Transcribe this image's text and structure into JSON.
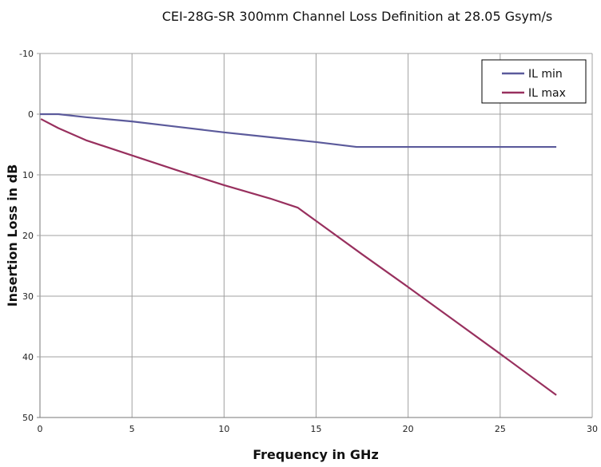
{
  "chart_data": {
    "type": "line",
    "title": "CEI-28G-SR 300mm Channel Loss Definition at 28.05 Gsym/s",
    "xlabel": "Frequency in GHz",
    "ylabel": "Insertion Loss in dB",
    "xlim": [
      0,
      30
    ],
    "ylim": [
      -10,
      50
    ],
    "y_inverted": true,
    "xticks": [
      "0",
      "5",
      "10",
      "15",
      "20",
      "25",
      "30"
    ],
    "yticks": [
      "-10",
      "0",
      "10",
      "20",
      "30",
      "40",
      "50"
    ],
    "grid": true,
    "legend_position": "top-right",
    "series": [
      {
        "name": "IL min",
        "color": "#5b5a9b",
        "x": [
          0,
          1,
          2.5,
          5,
          7.5,
          10,
          12.5,
          15,
          17.2,
          20,
          25,
          28.05
        ],
        "y": [
          0,
          0,
          0.5,
          1.2,
          2.1,
          3.0,
          3.8,
          4.6,
          5.4,
          5.4,
          5.4,
          5.4
        ]
      },
      {
        "name": "IL max",
        "color": "#98305e",
        "x": [
          0.05,
          1,
          2.5,
          5,
          7.5,
          10,
          12.5,
          14,
          15,
          17.5,
          20,
          22.5,
          25,
          28.05
        ],
        "y": [
          0.8,
          2.3,
          4.3,
          6.8,
          9.3,
          11.7,
          13.9,
          15.4,
          17.6,
          23.1,
          28.5,
          34.0,
          39.5,
          46.3
        ]
      }
    ]
  }
}
